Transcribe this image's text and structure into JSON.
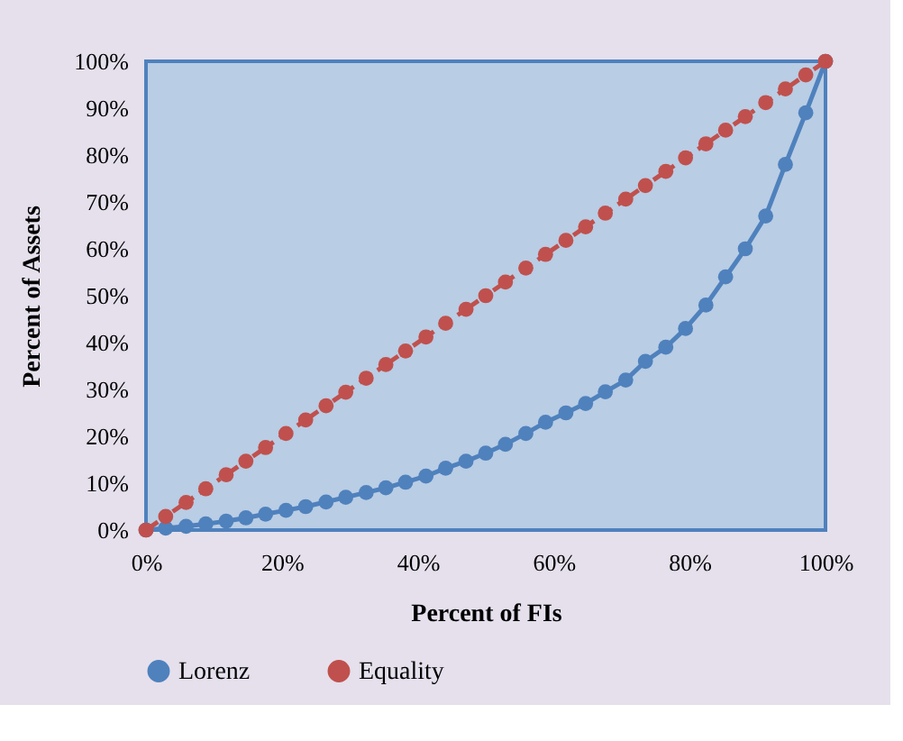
{
  "chart_data": {
    "type": "line",
    "xlabel": "Percent of FIs",
    "ylabel": "Percent of Assets",
    "x": [
      0,
      2.9,
      5.9,
      8.8,
      11.8,
      14.7,
      17.6,
      20.6,
      23.5,
      26.5,
      29.4,
      32.4,
      35.3,
      38.2,
      41.2,
      44.1,
      47.1,
      50,
      52.9,
      55.9,
      58.8,
      61.8,
      64.7,
      67.6,
      70.6,
      73.5,
      76.5,
      79.4,
      82.4,
      85.3,
      88.2,
      91.2,
      94.1,
      97.1,
      100
    ],
    "series": [
      {
        "name": "Lorenz",
        "color": "#4f81bd",
        "line_style": "solid",
        "values": [
          0,
          0.4,
          0.8,
          1.3,
          1.9,
          2.6,
          3.4,
          4.2,
          5,
          6,
          7,
          8,
          9,
          10.2,
          11.5,
          13.2,
          14.7,
          16.4,
          18.3,
          20.6,
          23,
          25,
          27,
          29.5,
          32,
          36,
          39,
          43,
          48,
          54,
          60,
          67,
          78,
          89,
          100
        ]
      },
      {
        "name": "Equality",
        "color": "#c0504d",
        "line_style": "dashed",
        "values": [
          0,
          2.9,
          5.9,
          8.8,
          11.8,
          14.7,
          17.6,
          20.6,
          23.5,
          26.5,
          29.4,
          32.4,
          35.3,
          38.2,
          41.2,
          44.1,
          47.1,
          50,
          52.9,
          55.9,
          58.8,
          61.8,
          64.7,
          67.6,
          70.6,
          73.5,
          76.5,
          79.4,
          82.4,
          85.3,
          88.2,
          91.2,
          94.1,
          97.1,
          100
        ]
      }
    ],
    "xlim": [
      0,
      100
    ],
    "ylim": [
      0,
      100
    ],
    "xticks": [
      {
        "value": 0,
        "label": "0%"
      },
      {
        "value": 20,
        "label": "20%"
      },
      {
        "value": 40,
        "label": "40%"
      },
      {
        "value": 60,
        "label": "60%"
      },
      {
        "value": 80,
        "label": "80%"
      },
      {
        "value": 100,
        "label": "100%"
      }
    ],
    "yticks": [
      {
        "value": 0,
        "label": "0%"
      },
      {
        "value": 10,
        "label": "10%"
      },
      {
        "value": 20,
        "label": "20%"
      },
      {
        "value": 30,
        "label": "30%"
      },
      {
        "value": 40,
        "label": "40%"
      },
      {
        "value": 50,
        "label": "50%"
      },
      {
        "value": 60,
        "label": "60%"
      },
      {
        "value": 70,
        "label": "70%"
      },
      {
        "value": 80,
        "label": "80%"
      },
      {
        "value": 90,
        "label": "90%"
      },
      {
        "value": 100,
        "label": "100%"
      }
    ],
    "grid": false,
    "legend": "bottom",
    "marker": "circle"
  }
}
